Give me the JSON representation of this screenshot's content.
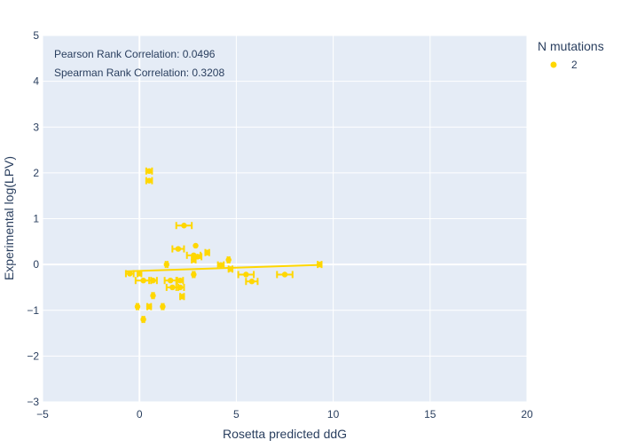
{
  "chart_data": {
    "type": "scatter",
    "title": "",
    "xlabel": "Rosetta predicted ddG",
    "ylabel": "Experimental log(LPV)",
    "xlim": [
      -5,
      20
    ],
    "ylim": [
      -3,
      5
    ],
    "x_ticks": [
      -5,
      0,
      5,
      10,
      15,
      20
    ],
    "y_ticks": [
      -3,
      -2,
      -1,
      0,
      1,
      2,
      3,
      4,
      5
    ],
    "x_tick_labels": [
      "−5",
      "0",
      "5",
      "10",
      "15",
      "20"
    ],
    "y_tick_labels": [
      "−3",
      "−2",
      "−1",
      "0",
      "1",
      "2",
      "3",
      "4",
      "5"
    ],
    "grid": true,
    "legend": {
      "title": "N mutations",
      "placement": "top-right",
      "entries": [
        {
          "label": "2",
          "color": "#ffd700"
        }
      ]
    },
    "annotations": [
      "Pearson Rank Correlation: 0.0496",
      "Spearman Rank Correlation: 0.3208"
    ],
    "series": [
      {
        "name": "2",
        "color": "#ffd700",
        "points": [
          {
            "x": 0.5,
            "y": 2.04,
            "err": 0.15
          },
          {
            "x": 0.5,
            "y": 1.83,
            "err": 0.15
          },
          {
            "x": 2.3,
            "y": 0.85,
            "err": 0.4
          },
          {
            "x": 2.0,
            "y": 0.34,
            "err": 0.3
          },
          {
            "x": 2.9,
            "y": 0.41,
            "err": 0.0
          },
          {
            "x": 3.5,
            "y": 0.26,
            "err": 0.1
          },
          {
            "x": 2.8,
            "y": 0.2,
            "err": 0.35
          },
          {
            "x": 3.0,
            "y": 0.17,
            "err": 0.2
          },
          {
            "x": 2.8,
            "y": 0.1,
            "err": 0.1
          },
          {
            "x": 4.6,
            "y": 0.1,
            "err": 0.05
          },
          {
            "x": 1.4,
            "y": 0.0,
            "err": 0.05
          },
          {
            "x": 4.2,
            "y": -0.01,
            "err": 0.15
          },
          {
            "x": 9.3,
            "y": 0.0,
            "err": 0.1
          },
          {
            "x": 4.7,
            "y": -0.1,
            "err": 0.1
          },
          {
            "x": -0.5,
            "y": -0.2,
            "err": 0.2
          },
          {
            "x": 0.0,
            "y": -0.2,
            "err": 0.1
          },
          {
            "x": 2.8,
            "y": -0.22,
            "err": 0.05
          },
          {
            "x": 5.5,
            "y": -0.22,
            "err": 0.4
          },
          {
            "x": 7.5,
            "y": -0.22,
            "err": 0.4
          },
          {
            "x": 0.2,
            "y": -0.35,
            "err": 0.4
          },
          {
            "x": 0.7,
            "y": -0.35,
            "err": 0.2
          },
          {
            "x": 1.6,
            "y": -0.35,
            "err": 0.3
          },
          {
            "x": 2.1,
            "y": -0.35,
            "err": 0.15
          },
          {
            "x": 5.8,
            "y": -0.37,
            "err": 0.3
          },
          {
            "x": 1.7,
            "y": -0.5,
            "err": 0.3
          },
          {
            "x": 2.1,
            "y": -0.5,
            "err": 0.2
          },
          {
            "x": 0.7,
            "y": -0.68,
            "err": 0.05
          },
          {
            "x": 2.2,
            "y": -0.7,
            "err": 0.1
          },
          {
            "x": -0.1,
            "y": -0.92,
            "err": 0.05
          },
          {
            "x": 0.5,
            "y": -0.92,
            "err": 0.1
          },
          {
            "x": 1.2,
            "y": -0.92,
            "err": 0.05
          },
          {
            "x": 0.2,
            "y": -1.2,
            "err": 0.05
          }
        ],
        "trendline": {
          "x": [
            -0.7,
            9.3
          ],
          "y": [
            -0.15,
            -0.01
          ]
        }
      }
    ]
  }
}
